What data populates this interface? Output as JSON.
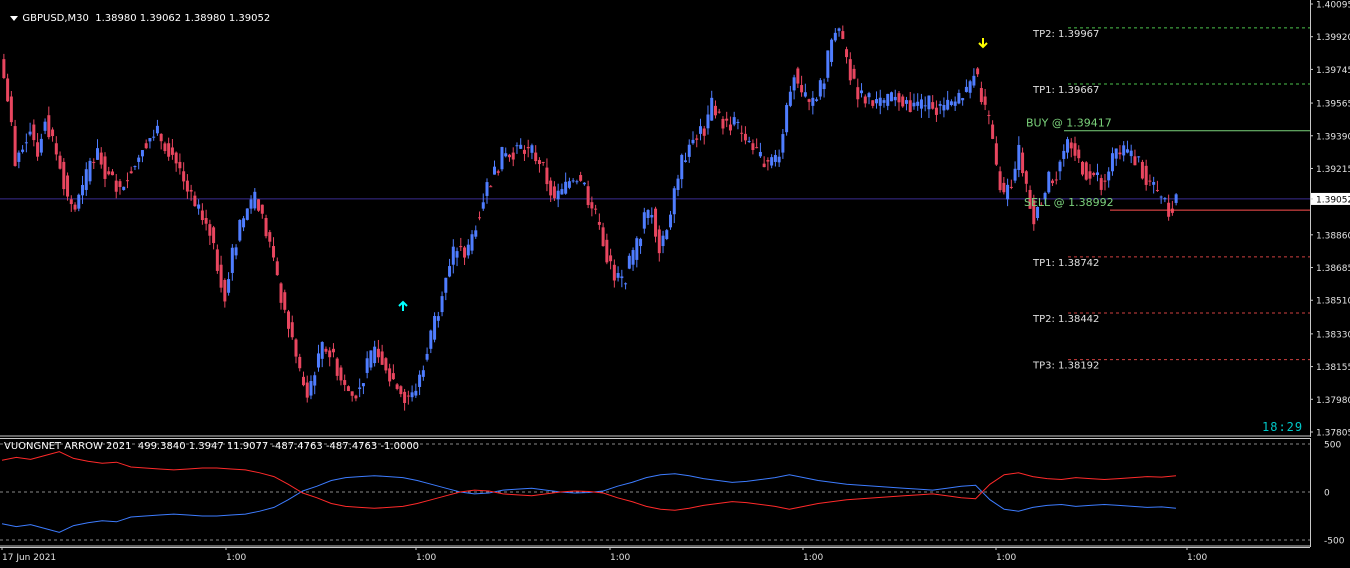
{
  "header": {
    "symbol": "GBPUSD,M30",
    "ohlc": "1.38980 1.39062 1.38980 1.39052"
  },
  "indicator": {
    "title": "VUONGNET ARROW 2021",
    "values": "499.3840 1.3947 11.9077 -487.4763 -487.4763 -1.0000"
  },
  "clock": "18:29",
  "colors": {
    "background": "#000000",
    "bull": "#4f7dff",
    "bear": "#e8465f",
    "buy_line": "#7bd27b",
    "sell_line": "#ff5050",
    "tp_buy": "#4cc24c",
    "tp_sell": "#d04040",
    "current_price_line": "#3a2d8f",
    "osc_blue": "#3d7cff",
    "osc_red": "#ff2a2a",
    "arrow_up": "#00ffff",
    "arrow_down": "#ffff00"
  },
  "levels": [
    {
      "label": "TP2: 1.39967",
      "price": 1.39967,
      "kind": "tp_buy"
    },
    {
      "label": "TP1: 1.39667",
      "price": 1.39667,
      "kind": "tp_buy"
    },
    {
      "label": "BUY @ 1.39417",
      "price": 1.39417,
      "kind": "buy"
    },
    {
      "label": "SELL @ 1.38992",
      "price": 1.38992,
      "kind": "sell"
    },
    {
      "label": "TP1: 1.38742",
      "price": 1.38742,
      "kind": "tp_sell"
    },
    {
      "label": "TP2: 1.38442",
      "price": 1.38442,
      "kind": "tp_sell"
    },
    {
      "label": "TP3: 1.38192",
      "price": 1.38192,
      "kind": "tp_sell"
    }
  ],
  "chart_data": [
    {
      "type": "candlestick",
      "title": "GBPUSD,M30",
      "y_ticks": [
        "1.40095",
        "1.39920",
        "1.39745",
        "1.39565",
        "1.39390",
        "1.39215",
        "1.39052",
        "1.38860",
        "1.38685",
        "1.38510",
        "1.38330",
        "1.38155",
        "1.37980",
        "1.37805"
      ],
      "ylim": [
        1.37805,
        1.40095
      ],
      "current_price": "1.39052",
      "x_ticks": [
        "17 Jun 2021",
        "1:00",
        "1:00",
        "1:00",
        "1:00",
        "1:00",
        "1:00"
      ],
      "close_path": [
        1.398,
        1.396,
        1.3925,
        1.3935,
        1.3945,
        1.393,
        1.395,
        1.3935,
        1.3925,
        1.3905,
        1.39,
        1.391,
        1.3925,
        1.393,
        1.392,
        1.3915,
        1.391,
        1.392,
        1.3925,
        1.3935,
        1.3938,
        1.394,
        1.3935,
        1.393,
        1.392,
        1.391,
        1.39,
        1.3895,
        1.389,
        1.387,
        1.3855,
        1.3875,
        1.389,
        1.39,
        1.3905,
        1.3895,
        1.388,
        1.386,
        1.3845,
        1.383,
        1.381,
        1.38,
        1.3815,
        1.3825,
        1.3825,
        1.3815,
        1.3805,
        1.38,
        1.3805,
        1.3815,
        1.3825,
        1.382,
        1.3812,
        1.3805,
        1.38,
        1.38,
        1.381,
        1.3825,
        1.384,
        1.3855,
        1.387,
        1.388,
        1.3875,
        1.3885,
        1.39,
        1.3912,
        1.392,
        1.3928,
        1.393,
        1.3932,
        1.3933,
        1.393,
        1.3925,
        1.3915,
        1.3905,
        1.3908,
        1.3915,
        1.3918,
        1.3912,
        1.39,
        1.389,
        1.3875,
        1.3863,
        1.386,
        1.387,
        1.388,
        1.3895,
        1.39,
        1.388,
        1.389,
        1.391,
        1.3925,
        1.3935,
        1.394,
        1.3943,
        1.3955,
        1.3948,
        1.3945,
        1.3946,
        1.394,
        1.3935,
        1.3928,
        1.3926,
        1.3925,
        1.393,
        1.3955,
        1.3975,
        1.396,
        1.3955,
        1.396,
        1.397,
        1.399,
        1.3995,
        1.398,
        1.3965,
        1.396,
        1.3958,
        1.3955,
        1.3955,
        1.3958,
        1.396,
        1.3958,
        1.3955,
        1.3955,
        1.3957,
        1.3955,
        1.3953,
        1.3955,
        1.3958,
        1.3962,
        1.3975,
        1.396,
        1.3945,
        1.392,
        1.3905,
        1.3915,
        1.393,
        1.391,
        1.3895,
        1.3905,
        1.3915,
        1.392,
        1.393,
        1.3935,
        1.3925,
        1.392,
        1.3918,
        1.3915,
        1.392,
        1.393,
        1.393,
        1.3928,
        1.3925,
        1.3915,
        1.391,
        1.3905,
        1.39,
        1.3905
      ]
    },
    {
      "type": "line",
      "title": "VUONGNET ARROW 2021",
      "y_ticks": [
        "500",
        "0",
        "-500"
      ],
      "ylim": [
        -500,
        500
      ],
      "series": [
        {
          "values": [
            -330,
            -360,
            -340,
            -380,
            -420,
            -350,
            -320,
            -300,
            -310,
            -260,
            -250,
            -240,
            -230,
            -240,
            -250,
            -250,
            -240,
            -230,
            -200,
            -160,
            -80,
            10,
            60,
            120,
            150,
            160,
            170,
            160,
            150,
            120,
            80,
            40,
            0,
            -20,
            -10,
            20,
            30,
            40,
            20,
            0,
            -10,
            -5,
            10,
            60,
            100,
            150,
            180,
            190,
            170,
            140,
            120,
            100,
            110,
            130,
            150,
            180,
            150,
            120,
            100,
            80,
            70,
            60,
            50,
            40,
            30,
            20,
            40,
            60,
            70,
            -80,
            -180,
            -200,
            -160,
            -140,
            -130,
            -150,
            -140,
            -130,
            -140,
            -150,
            -160,
            -155,
            -170
          ]
        },
        {
          "values": [
            330,
            360,
            340,
            380,
            420,
            350,
            320,
            300,
            310,
            260,
            250,
            240,
            230,
            240,
            250,
            250,
            240,
            230,
            200,
            160,
            80,
            -10,
            -60,
            -120,
            -150,
            -160,
            -170,
            -160,
            -150,
            -120,
            -80,
            -40,
            0,
            20,
            10,
            -20,
            -30,
            -40,
            -20,
            0,
            10,
            5,
            -10,
            -60,
            -100,
            -150,
            -180,
            -190,
            -170,
            -140,
            -120,
            -100,
            -110,
            -130,
            -150,
            -180,
            -150,
            -120,
            -100,
            -80,
            -70,
            -60,
            -50,
            -40,
            -30,
            -20,
            -40,
            -60,
            -70,
            80,
            180,
            200,
            160,
            140,
            130,
            150,
            140,
            130,
            140,
            150,
            160,
            155,
            170
          ]
        }
      ]
    }
  ]
}
